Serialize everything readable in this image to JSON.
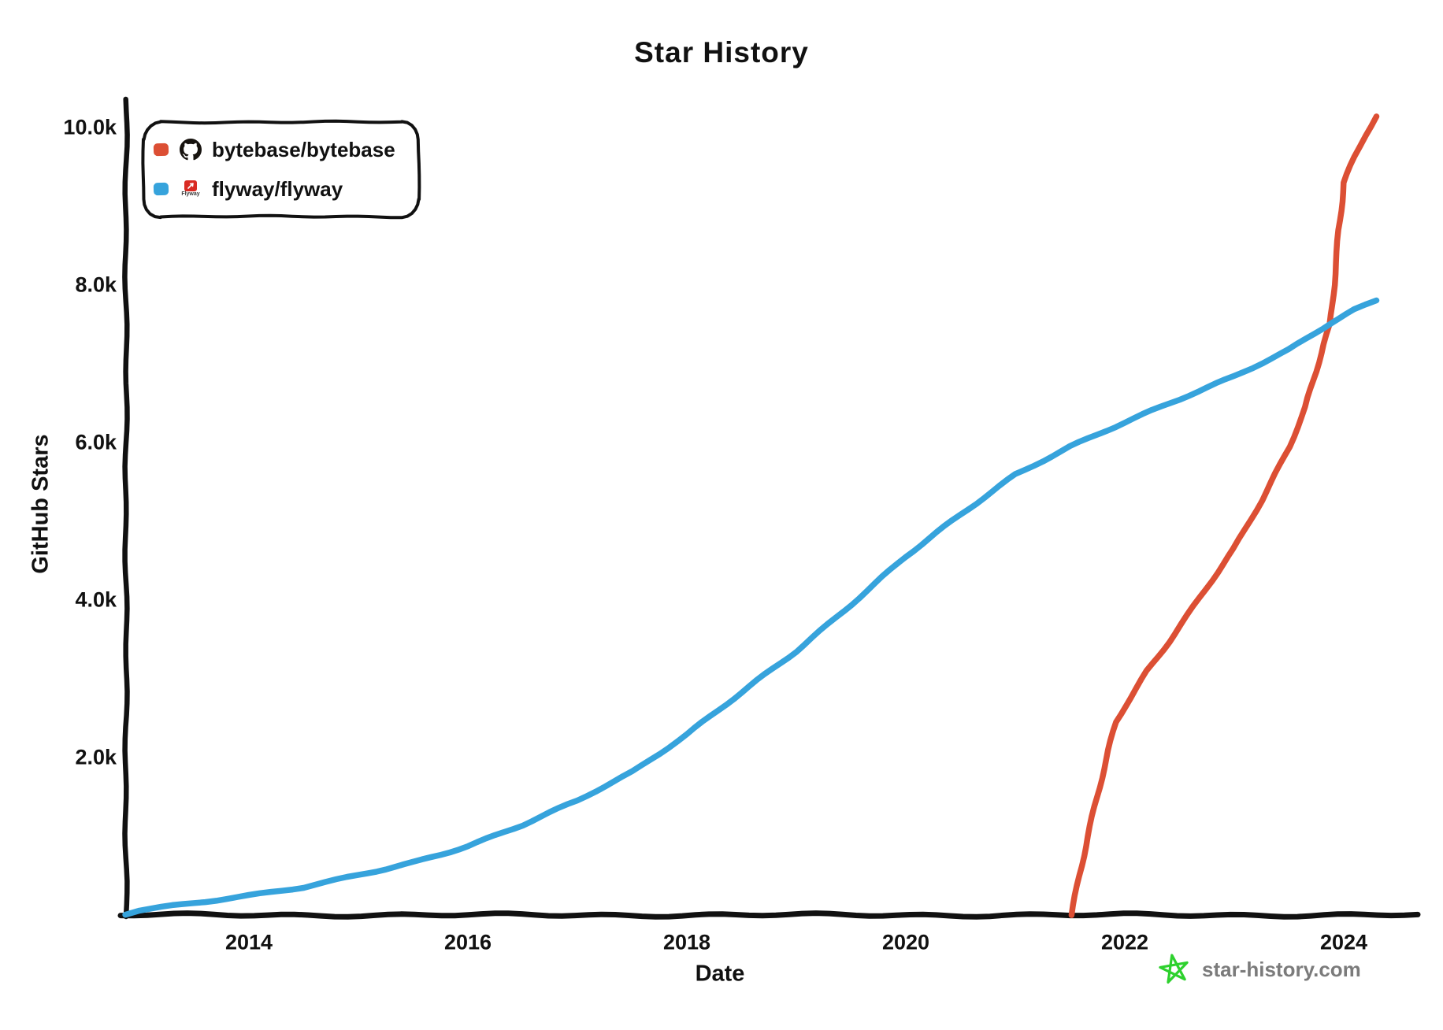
{
  "title": "Star History",
  "axes": {
    "x_label": "Date",
    "y_label": "GitHub Stars",
    "x_ticks": [
      "2014",
      "2016",
      "2018",
      "2020",
      "2022",
      "2024"
    ],
    "y_ticks": [
      "10.0k",
      "8.0k",
      "6.0k",
      "4.0k",
      "2.0k"
    ]
  },
  "legend": {
    "items": [
      {
        "label": "bytebase/bytebase",
        "color": "#DC4F34",
        "icon": "github-logo"
      },
      {
        "label": "flyway/flyway",
        "color": "#36A3DC",
        "icon": "flyway-logo"
      }
    ],
    "flyway_logo_text": "Flyway"
  },
  "watermark": {
    "text": "star-history.com",
    "star_color": "#2ED12E",
    "text_color": "#7b7b7b"
  },
  "colors": {
    "axis": "#111111",
    "background": "#ffffff"
  },
  "chart_data": {
    "type": "line",
    "title": "Star History",
    "xlabel": "Date",
    "ylabel": "GitHub Stars",
    "x_unit": "year",
    "xlim": [
      2012.85,
      2024.45
    ],
    "ylim": [
      0,
      10300
    ],
    "x_tick_values": [
      2014,
      2016,
      2018,
      2020,
      2022,
      2024
    ],
    "y_tick_values": [
      10000,
      8000,
      6000,
      4000,
      2000
    ],
    "grid": false,
    "legend_position": "top-left",
    "series": [
      {
        "name": "bytebase/bytebase",
        "color": "#DC4F34",
        "points": [
          [
            2021.51,
            0
          ],
          [
            2021.58,
            500
          ],
          [
            2021.66,
            1000
          ],
          [
            2021.75,
            1500
          ],
          [
            2021.92,
            2450
          ],
          [
            2022.0,
            2650
          ],
          [
            2022.2,
            3100
          ],
          [
            2022.4,
            3470
          ],
          [
            2022.57,
            3800
          ],
          [
            2022.8,
            4250
          ],
          [
            2023.0,
            4650
          ],
          [
            2023.25,
            5270
          ],
          [
            2023.5,
            5950
          ],
          [
            2023.65,
            6450
          ],
          [
            2023.75,
            6900
          ],
          [
            2023.82,
            7250
          ],
          [
            2023.88,
            7500
          ],
          [
            2023.91,
            8000
          ],
          [
            2023.95,
            8700
          ],
          [
            2024.0,
            9300
          ],
          [
            2024.1,
            9620
          ],
          [
            2024.2,
            9900
          ],
          [
            2024.3,
            10140
          ]
        ]
      },
      {
        "name": "flyway/flyway",
        "color": "#36A3DC",
        "points": [
          [
            2012.87,
            10
          ],
          [
            2013.0,
            60
          ],
          [
            2013.5,
            160
          ],
          [
            2014.0,
            250
          ],
          [
            2014.5,
            350
          ],
          [
            2015.0,
            500
          ],
          [
            2015.5,
            670
          ],
          [
            2016.0,
            880
          ],
          [
            2016.5,
            1140
          ],
          [
            2017.0,
            1450
          ],
          [
            2017.5,
            1820
          ],
          [
            2018.0,
            2300
          ],
          [
            2018.5,
            2820
          ],
          [
            2019.0,
            3350
          ],
          [
            2019.5,
            3950
          ],
          [
            2020.0,
            4550
          ],
          [
            2020.5,
            5080
          ],
          [
            2021.0,
            5600
          ],
          [
            2021.5,
            5950
          ],
          [
            2022.0,
            6250
          ],
          [
            2022.5,
            6550
          ],
          [
            2023.0,
            6850
          ],
          [
            2023.5,
            7180
          ],
          [
            2023.89,
            7520
          ],
          [
            2024.1,
            7680
          ],
          [
            2024.3,
            7800
          ]
        ]
      }
    ]
  }
}
